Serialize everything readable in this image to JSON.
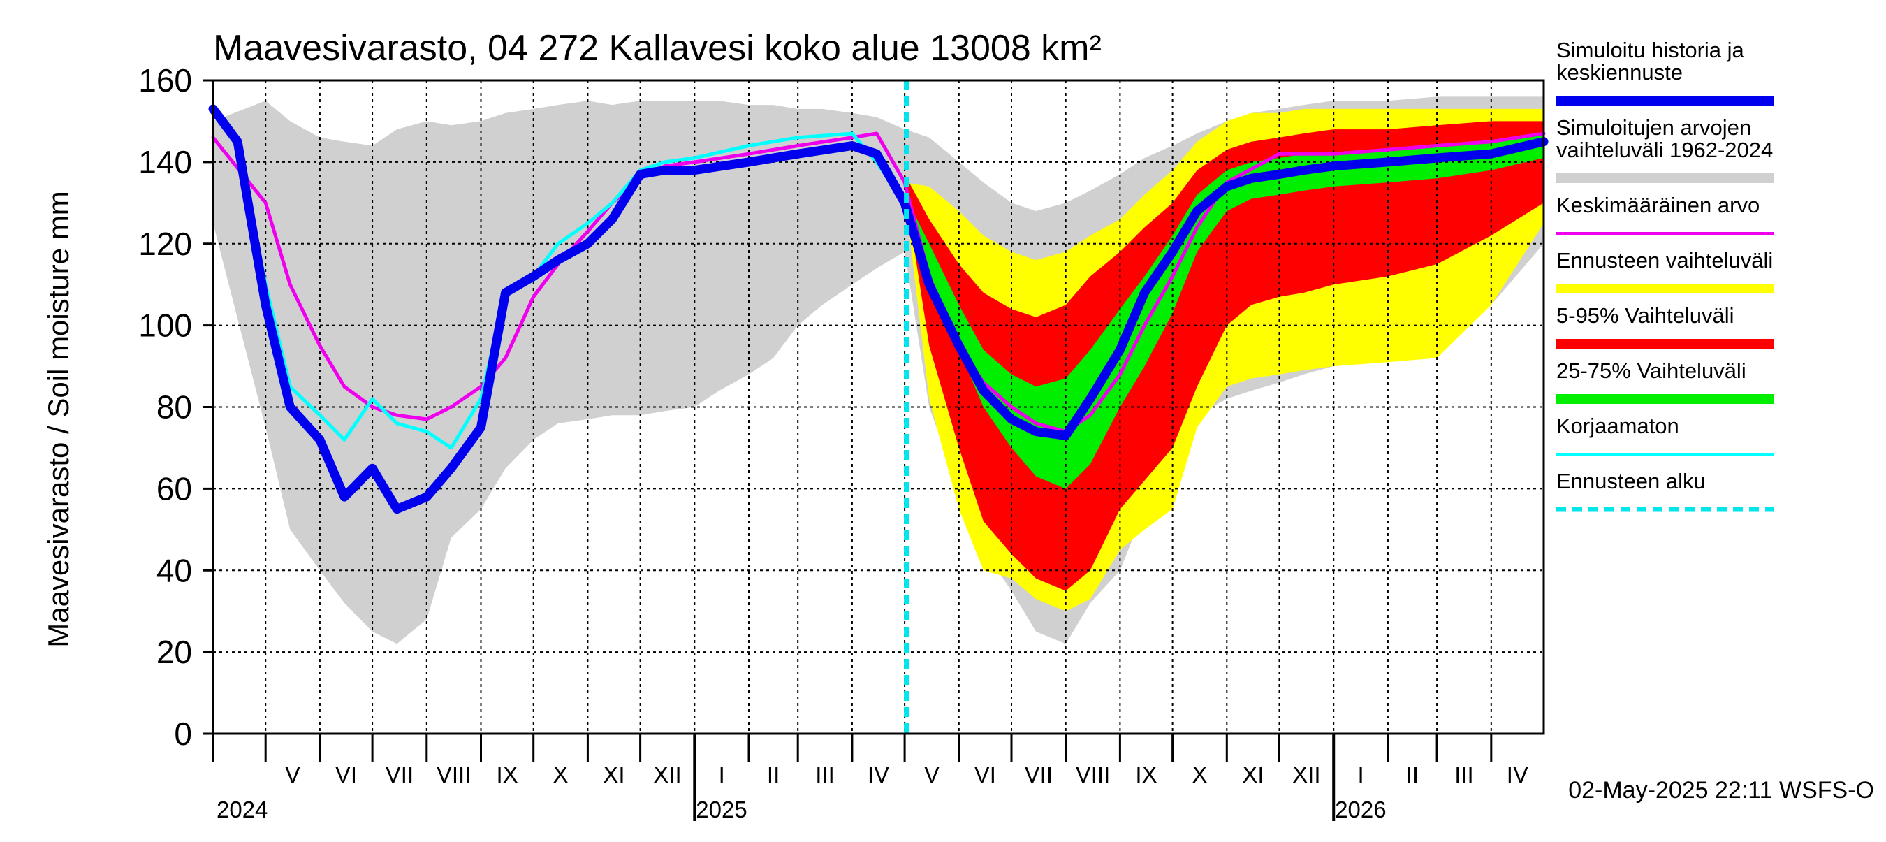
{
  "chart_data": {
    "type": "area",
    "title": "Maavesivarasto, 04 272 Kallavesi koko alue 13008 km²",
    "ylabel": "Maavesivarasto / Soil moisture   mm",
    "ylim": [
      0,
      160
    ],
    "yticks": [
      0,
      20,
      40,
      60,
      80,
      100,
      120,
      140,
      160
    ],
    "xlim": [
      "2024-04-01",
      "2026-05-01"
    ],
    "grid": true,
    "legend_position": "right",
    "months": [
      {
        "label": "V",
        "start": "2024-05-01"
      },
      {
        "label": "VI",
        "start": "2024-06-01"
      },
      {
        "label": "VII",
        "start": "2024-07-01"
      },
      {
        "label": "VIII",
        "start": "2024-08-01"
      },
      {
        "label": "IX",
        "start": "2024-09-01"
      },
      {
        "label": "X",
        "start": "2024-10-01"
      },
      {
        "label": "XI",
        "start": "2024-11-01"
      },
      {
        "label": "XII",
        "start": "2024-12-01"
      },
      {
        "label": "I",
        "start": "2025-01-01"
      },
      {
        "label": "II",
        "start": "2025-02-01"
      },
      {
        "label": "III",
        "start": "2025-03-01"
      },
      {
        "label": "IV",
        "start": "2025-04-01"
      },
      {
        "label": "V",
        "start": "2025-05-01"
      },
      {
        "label": "VI",
        "start": "2025-06-01"
      },
      {
        "label": "VII",
        "start": "2025-07-01"
      },
      {
        "label": "VIII",
        "start": "2025-08-01"
      },
      {
        "label": "IX",
        "start": "2025-09-01"
      },
      {
        "label": "X",
        "start": "2025-10-01"
      },
      {
        "label": "XI",
        "start": "2025-11-01"
      },
      {
        "label": "XII",
        "start": "2025-12-01"
      },
      {
        "label": "I",
        "start": "2026-01-01"
      },
      {
        "label": "II",
        "start": "2026-02-01"
      },
      {
        "label": "III",
        "start": "2026-03-01"
      },
      {
        "label": "IV",
        "start": "2026-04-01"
      }
    ],
    "years": [
      {
        "label": "2024",
        "start": "2024-05-01"
      },
      {
        "label": "2025",
        "start": "2025-01-01"
      },
      {
        "label": "2026",
        "start": "2026-01-01"
      }
    ],
    "forecast_start": "2025-05-02",
    "footer": "02-May-2025 22:11 WSFS-O",
    "legend": [
      {
        "label": "Simuloitu historia ja\nkeskiennuste",
        "color": "#0000ee",
        "style": "thick"
      },
      {
        "label": "Simuloitujen arvojen\nvaihteluväli 1962-2024",
        "color": "#d0d0d0",
        "style": "thick"
      },
      {
        "label": "Keskimääräinen arvo",
        "color": "#ee00ee",
        "style": "thin"
      },
      {
        "label": "Ennusteen vaihteluväli",
        "color": "#ffff00",
        "style": "thick"
      },
      {
        "label": "5-95% Vaihteluväli",
        "color": "#ff0000",
        "style": "thick"
      },
      {
        "label": "25-75% Vaihteluväli",
        "color": "#00ee00",
        "style": "thick"
      },
      {
        "label": "Korjaamaton",
        "color": "#00ffff",
        "style": "thin"
      },
      {
        "label": "Ennusteen alku",
        "color": "#00e5ee",
        "style": "dashed"
      }
    ],
    "series": [
      {
        "name": "Simuloitujen arvojen vaihteluväli 1962-2024",
        "role": "band",
        "color": "#d0d0d0",
        "x": [
          "2024-04-01",
          "2024-05-01",
          "2024-05-15",
          "2024-06-01",
          "2024-06-15",
          "2024-07-01",
          "2024-07-15",
          "2024-08-01",
          "2024-08-15",
          "2024-09-01",
          "2024-09-15",
          "2024-10-01",
          "2024-10-15",
          "2024-11-01",
          "2024-11-15",
          "2024-12-01",
          "2024-12-15",
          "2025-01-01",
          "2025-01-15",
          "2025-02-01",
          "2025-02-15",
          "2025-03-01",
          "2025-03-15",
          "2025-04-01",
          "2025-04-15",
          "2025-05-01",
          "2025-05-15",
          "2025-06-01",
          "2025-06-15",
          "2025-07-01",
          "2025-07-15",
          "2025-08-01",
          "2025-08-15",
          "2025-09-01",
          "2025-09-15",
          "2025-10-01",
          "2025-10-15",
          "2025-11-01",
          "2025-11-15",
          "2025-12-01",
          "2025-12-15",
          "2026-01-01",
          "2026-02-01",
          "2026-03-01",
          "2026-04-01",
          "2026-05-01"
        ],
        "low": [
          125,
          75,
          50,
          40,
          32,
          25,
          22,
          28,
          48,
          55,
          65,
          72,
          76,
          77,
          78,
          78,
          79,
          80,
          84,
          88,
          92,
          100,
          105,
          110,
          114,
          118,
          80,
          60,
          45,
          35,
          25,
          22,
          32,
          40,
          55,
          65,
          78,
          82,
          84,
          86,
          88,
          90,
          92,
          94,
          105,
          120
        ],
        "high": [
          150,
          155,
          150,
          146,
          145,
          144,
          148,
          150,
          149,
          150,
          152,
          153,
          154,
          155,
          154,
          155,
          155,
          155,
          155,
          154,
          154,
          153,
          153,
          152,
          151,
          148,
          146,
          140,
          135,
          130,
          128,
          130,
          133,
          137,
          141,
          144,
          147,
          150,
          152,
          153,
          154,
          155,
          155,
          156,
          156,
          156
        ]
      },
      {
        "name": "Ennusteen vaihteluväli",
        "role": "band",
        "color": "#ffff00",
        "x": [
          "2025-05-01",
          "2025-05-15",
          "2025-06-01",
          "2025-06-15",
          "2025-07-01",
          "2025-07-15",
          "2025-08-01",
          "2025-08-15",
          "2025-09-01",
          "2025-09-15",
          "2025-10-01",
          "2025-10-15",
          "2025-11-01",
          "2025-11-15",
          "2025-12-01",
          "2025-12-15",
          "2026-01-01",
          "2026-02-01",
          "2026-03-01",
          "2026-04-01",
          "2026-05-01"
        ],
        "low": [
          132,
          82,
          55,
          40,
          38,
          33,
          30,
          33,
          45,
          50,
          55,
          75,
          85,
          87,
          88,
          89,
          90,
          91,
          92,
          105,
          125
        ],
        "high": [
          135,
          134,
          128,
          122,
          118,
          116,
          118,
          122,
          126,
          132,
          138,
          145,
          150,
          152,
          152,
          153,
          153,
          153,
          153,
          153,
          153
        ]
      },
      {
        "name": "5-95% Vaihteluväli",
        "role": "band",
        "color": "#ff0000",
        "x": [
          "2025-05-01",
          "2025-05-15",
          "2025-06-01",
          "2025-06-15",
          "2025-07-01",
          "2025-07-15",
          "2025-08-01",
          "2025-08-15",
          "2025-09-01",
          "2025-09-15",
          "2025-10-01",
          "2025-10-15",
          "2025-11-01",
          "2025-11-15",
          "2025-12-01",
          "2025-12-15",
          "2026-01-01",
          "2026-02-01",
          "2026-03-01",
          "2026-04-01",
          "2026-05-01"
        ],
        "low": [
          134,
          95,
          70,
          52,
          44,
          38,
          35,
          40,
          55,
          62,
          70,
          85,
          100,
          105,
          107,
          108,
          110,
          112,
          115,
          122,
          130
        ],
        "high": [
          137,
          126,
          115,
          108,
          104,
          102,
          105,
          112,
          118,
          124,
          130,
          138,
          143,
          145,
          146,
          147,
          148,
          148,
          149,
          150,
          150
        ]
      },
      {
        "name": "25-75% Vaihteluväli",
        "role": "band",
        "color": "#00ee00",
        "x": [
          "2025-05-01",
          "2025-05-15",
          "2025-06-01",
          "2025-06-15",
          "2025-07-01",
          "2025-07-15",
          "2025-08-01",
          "2025-08-15",
          "2025-09-01",
          "2025-09-15",
          "2025-10-01",
          "2025-10-15",
          "2025-11-01",
          "2025-11-15",
          "2025-12-01",
          "2025-12-15",
          "2026-01-01",
          "2026-02-01",
          "2026-03-01",
          "2026-04-01",
          "2026-05-01"
        ],
        "low": [
          129,
          112,
          94,
          80,
          70,
          63,
          60,
          66,
          80,
          90,
          103,
          118,
          128,
          131,
          132,
          133,
          134,
          135,
          136,
          138,
          141
        ],
        "high": [
          132,
          120,
          105,
          94,
          88,
          85,
          87,
          94,
          104,
          112,
          122,
          132,
          138,
          140,
          141,
          142,
          142,
          143,
          144,
          145,
          147
        ]
      },
      {
        "name": "Keskimääräinen arvo",
        "role": "line",
        "color": "#ee00ee",
        "x": [
          "2024-04-01",
          "2024-05-01",
          "2024-05-15",
          "2024-06-01",
          "2024-06-15",
          "2024-07-01",
          "2024-07-15",
          "2024-08-01",
          "2024-08-15",
          "2024-09-01",
          "2024-09-15",
          "2024-10-01",
          "2024-10-15",
          "2024-11-01",
          "2024-11-15",
          "2024-12-01",
          "2024-12-15",
          "2025-01-01",
          "2025-02-01",
          "2025-03-01",
          "2025-04-01",
          "2025-04-15",
          "2025-05-01",
          "2025-05-15",
          "2025-06-01",
          "2025-06-15",
          "2025-07-01",
          "2025-07-15",
          "2025-08-01",
          "2025-08-15",
          "2025-09-01",
          "2025-09-15",
          "2025-10-01",
          "2025-10-15",
          "2025-11-01",
          "2025-12-01",
          "2026-01-01",
          "2026-02-01",
          "2026-03-01",
          "2026-04-01",
          "2026-05-01"
        ],
        "values": [
          146,
          130,
          110,
          95,
          85,
          80,
          78,
          77,
          80,
          85,
          92,
          107,
          115,
          123,
          130,
          136,
          139,
          140,
          142,
          144,
          146,
          147,
          135,
          112,
          95,
          86,
          80,
          76,
          74,
          78,
          88,
          100,
          112,
          124,
          135,
          142,
          142,
          143,
          144,
          145,
          147
        ]
      },
      {
        "name": "Korjaamaton",
        "role": "line",
        "color": "#00ffff",
        "x": [
          "2024-04-01",
          "2024-04-15",
          "2024-05-01",
          "2024-05-15",
          "2024-06-01",
          "2024-06-15",
          "2024-07-01",
          "2024-07-15",
          "2024-08-01",
          "2024-08-15",
          "2024-09-01",
          "2024-09-15",
          "2024-10-01",
          "2024-10-15",
          "2024-11-01",
          "2024-11-15",
          "2024-12-01",
          "2024-12-15",
          "2025-01-01",
          "2025-02-01",
          "2025-03-01",
          "2025-04-01",
          "2025-04-15",
          "2025-05-01"
        ],
        "values": [
          152,
          145,
          110,
          85,
          78,
          72,
          82,
          76,
          74,
          70,
          82,
          108,
          112,
          120,
          125,
          130,
          138,
          140,
          141,
          144,
          146,
          147,
          140,
          130
        ]
      },
      {
        "name": "Simuloitu historia ja keskiennuste",
        "role": "line",
        "color": "#0000ee",
        "x": [
          "2024-04-01",
          "2024-04-15",
          "2024-05-01",
          "2024-05-15",
          "2024-06-01",
          "2024-06-15",
          "2024-07-01",
          "2024-07-15",
          "2024-08-01",
          "2024-08-15",
          "2024-09-01",
          "2024-09-15",
          "2024-10-01",
          "2024-10-15",
          "2024-11-01",
          "2024-11-15",
          "2024-12-01",
          "2024-12-15",
          "2025-01-01",
          "2025-02-01",
          "2025-03-01",
          "2025-04-01",
          "2025-04-15",
          "2025-05-01",
          "2025-05-15",
          "2025-06-01",
          "2025-06-15",
          "2025-07-01",
          "2025-07-15",
          "2025-08-01",
          "2025-08-15",
          "2025-09-01",
          "2025-09-15",
          "2025-10-01",
          "2025-10-15",
          "2025-11-01",
          "2025-11-15",
          "2025-12-01",
          "2025-12-15",
          "2026-01-01",
          "2026-02-01",
          "2026-03-01",
          "2026-04-01",
          "2026-05-01"
        ],
        "values": [
          153,
          145,
          105,
          80,
          72,
          58,
          65,
          55,
          58,
          65,
          75,
          108,
          112,
          116,
          120,
          126,
          137,
          138,
          138,
          140,
          142,
          144,
          142,
          130,
          110,
          95,
          84,
          77,
          74,
          73,
          82,
          94,
          108,
          118,
          128,
          134,
          136,
          137,
          138,
          139,
          140,
          141,
          142,
          145
        ]
      }
    ]
  }
}
